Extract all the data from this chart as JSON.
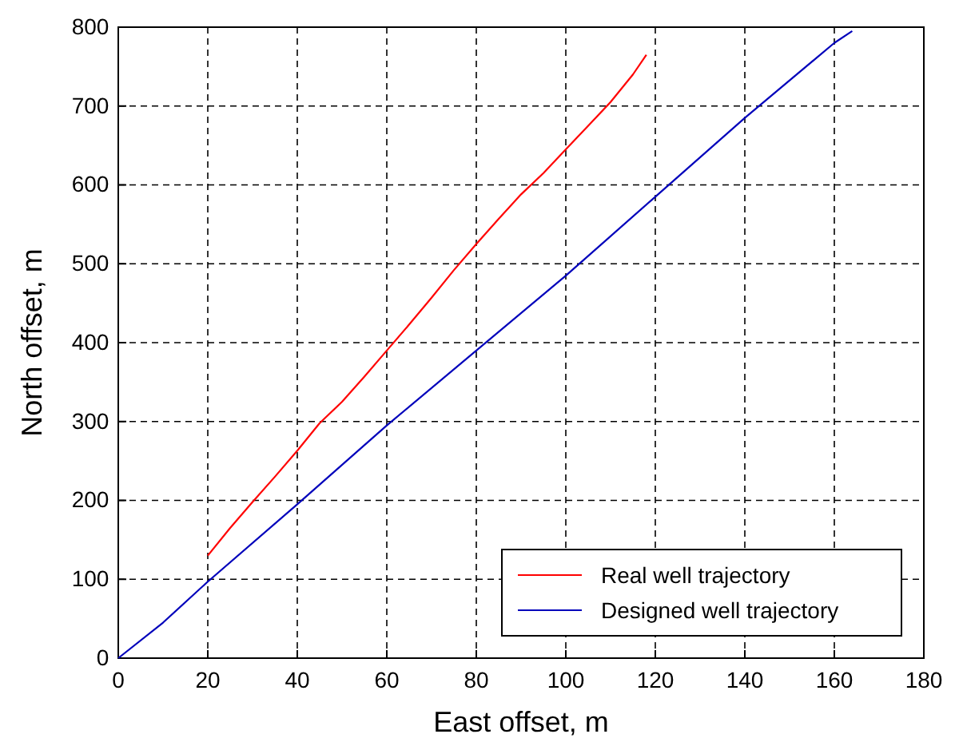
{
  "chart_data": {
    "type": "line",
    "xlabel": "East offset, m",
    "ylabel": "North offset, m",
    "xlim": [
      0,
      180
    ],
    "ylim": [
      0,
      800
    ],
    "xticks": [
      0,
      20,
      40,
      60,
      80,
      100,
      120,
      140,
      160,
      180
    ],
    "yticks": [
      0,
      100,
      200,
      300,
      400,
      500,
      600,
      700,
      800
    ],
    "grid": true,
    "legend": "bottom right",
    "line_style": "solid",
    "series": [
      {
        "name": "Real well trajectory",
        "color": "#ff0000",
        "x": [
          20,
          25,
          30,
          35,
          40,
          45,
          50,
          55,
          60,
          65,
          70,
          75,
          80,
          85,
          90,
          95,
          100,
          105,
          110,
          115,
          118
        ],
        "values": [
          130,
          165,
          198,
          230,
          263,
          298,
          325,
          357,
          390,
          423,
          457,
          492,
          525,
          557,
          588,
          615,
          645,
          675,
          705,
          740,
          765
        ]
      },
      {
        "name": "Designed well trajectory",
        "color": "#0000bb",
        "x": [
          0,
          10,
          20,
          40,
          60,
          80,
          100,
          120,
          140,
          160,
          164
        ],
        "values": [
          0,
          45,
          97,
          195,
          295,
          390,
          485,
          585,
          685,
          780,
          795
        ]
      }
    ]
  }
}
